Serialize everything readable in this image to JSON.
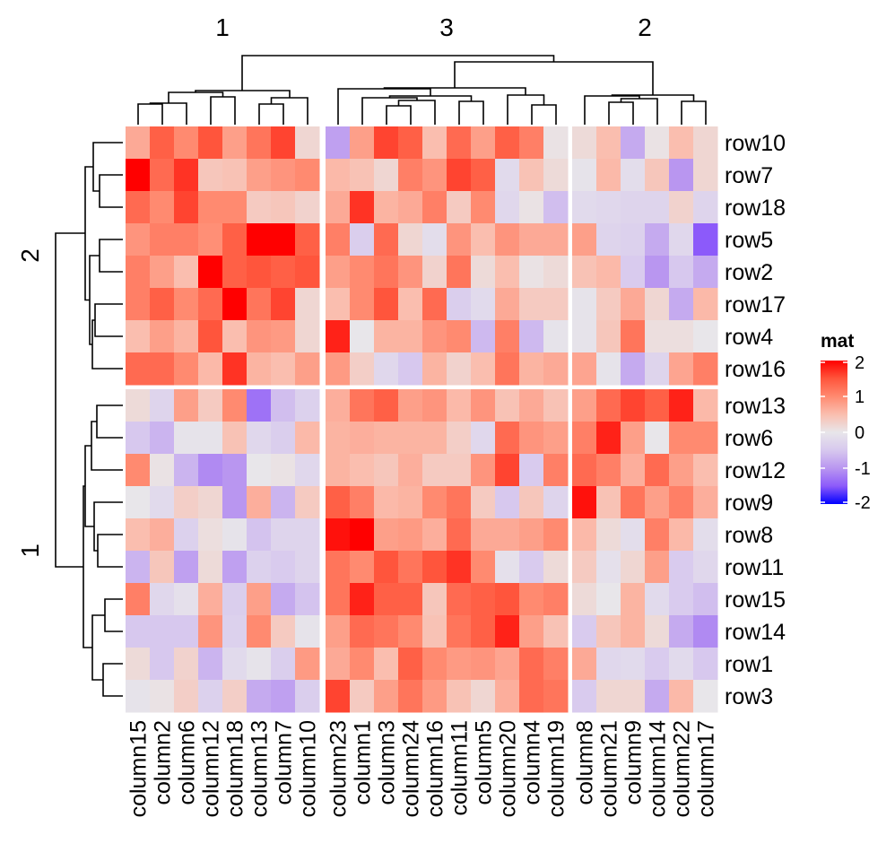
{
  "chart_data": {
    "type": "heatmap",
    "column_groups": [
      {
        "title": "1",
        "columns": [
          "column15",
          "column2",
          "column6",
          "column12",
          "column18",
          "column13",
          "column7",
          "column10"
        ]
      },
      {
        "title": "3",
        "columns": [
          "column23",
          "column1",
          "column3",
          "column24",
          "column16",
          "column11",
          "column5",
          "column20",
          "column4",
          "column19"
        ]
      },
      {
        "title": "2",
        "columns": [
          "column8",
          "column21",
          "column9",
          "column14",
          "column22",
          "column17"
        ]
      }
    ],
    "row_groups": [
      {
        "title": "2",
        "rows": [
          "row10",
          "row7",
          "row18",
          "row5",
          "row2",
          "row17",
          "row4",
          "row16"
        ]
      },
      {
        "title": "1",
        "rows": [
          "row13",
          "row6",
          "row12",
          "row9",
          "row8",
          "row11",
          "row15",
          "row14",
          "row1",
          "row3"
        ]
      }
    ],
    "values": [
      [
        0.7,
        1.4,
        1.0,
        1.5,
        0.8,
        1.2,
        1.6,
        0.2,
        -0.9,
        0.8,
        1.6,
        1.4,
        0.5,
        1.3,
        0.8,
        1.4,
        1.1,
        0.05,
        0.15,
        0.5,
        -0.8,
        0.05,
        0.5,
        0.2
      ],
      [
        2.0,
        1.3,
        1.7,
        0.4,
        0.45,
        0.8,
        0.9,
        1.0,
        0.55,
        0.45,
        0.2,
        1.1,
        0.9,
        1.6,
        1.4,
        -0.2,
        0.45,
        0.15,
        -0.05,
        0.55,
        -0.15,
        0.4,
        -1.0,
        0.2
      ],
      [
        1.3,
        1.0,
        1.6,
        1.0,
        1.0,
        0.35,
        0.4,
        0.25,
        0.7,
        1.7,
        0.6,
        0.7,
        1.1,
        0.35,
        1.0,
        -0.25,
        0.05,
        -0.6,
        -0.2,
        -0.25,
        -0.3,
        -0.3,
        0.25,
        -0.3
      ],
      [
        0.9,
        1.1,
        1.1,
        0.95,
        1.4,
        2.0,
        2.0,
        1.4,
        1.1,
        -0.4,
        1.3,
        0.2,
        -0.15,
        0.9,
        0.5,
        0.9,
        0.7,
        0.7,
        0.8,
        -0.3,
        -0.35,
        -0.8,
        -0.25,
        -1.5
      ],
      [
        1.1,
        0.8,
        0.5,
        2.0,
        1.4,
        1.5,
        1.4,
        1.5,
        0.8,
        1.0,
        1.2,
        0.9,
        0.25,
        1.2,
        0.15,
        0.5,
        0.05,
        0.15,
        0.45,
        0.55,
        -0.45,
        -1.0,
        -0.5,
        -0.8
      ],
      [
        1.1,
        1.4,
        1.0,
        1.3,
        2.0,
        1.2,
        1.6,
        0.2,
        0.5,
        1.0,
        1.5,
        0.5,
        1.3,
        -0.4,
        -0.2,
        0.7,
        0.35,
        0.35,
        -0.05,
        0.35,
        0.7,
        0.2,
        -0.8,
        0.55
      ],
      [
        0.5,
        0.8,
        0.6,
        1.5,
        0.5,
        0.9,
        0.85,
        0.2,
        1.8,
        0.0,
        0.6,
        0.6,
        0.9,
        1.0,
        -0.65,
        1.1,
        -0.65,
        -0.05,
        -0.05,
        0.4,
        1.2,
        0.1,
        0.1,
        0.0
      ],
      [
        1.3,
        1.3,
        1.0,
        0.55,
        1.7,
        0.6,
        0.5,
        0.8,
        0.85,
        0.3,
        -0.25,
        -0.5,
        0.6,
        0.25,
        0.5,
        1.2,
        0.6,
        0.7,
        0.75,
        -0.05,
        -0.8,
        -0.3,
        0.75,
        1.1
      ],
      [
        0.15,
        -0.3,
        0.8,
        0.35,
        1.0,
        -1.3,
        -0.6,
        -0.35,
        0.65,
        1.2,
        1.4,
        0.8,
        0.9,
        0.55,
        0.9,
        0.45,
        0.7,
        0.45,
        0.8,
        1.3,
        1.6,
        1.4,
        1.8,
        0.55
      ],
      [
        -0.5,
        -0.7,
        -0.05,
        -0.05,
        0.45,
        -0.25,
        -0.4,
        0.55,
        0.6,
        0.65,
        0.6,
        0.6,
        0.6,
        0.3,
        -0.25,
        1.3,
        0.9,
        0.8,
        1.1,
        1.8,
        0.8,
        0.0,
        1.0,
        1.0
      ],
      [
        1.0,
        0.05,
        -0.7,
        -1.1,
        -1.0,
        0.0,
        0.05,
        -0.25,
        0.6,
        0.5,
        0.4,
        0.65,
        0.35,
        0.35,
        0.9,
        1.6,
        -0.45,
        1.1,
        1.3,
        1.1,
        0.65,
        1.3,
        0.8,
        0.5
      ],
      [
        0.0,
        -0.2,
        0.3,
        0.2,
        -1.0,
        0.65,
        -0.7,
        0.35,
        1.4,
        1.1,
        0.55,
        0.6,
        1.0,
        1.2,
        0.35,
        -0.5,
        0.4,
        -0.3,
        1.9,
        0.45,
        1.2,
        0.8,
        1.1,
        0.65
      ],
      [
        0.5,
        0.65,
        -0.35,
        0.1,
        -0.05,
        -0.55,
        -0.3,
        -0.3,
        1.9,
        2.0,
        0.8,
        0.85,
        0.65,
        1.3,
        0.7,
        0.7,
        0.8,
        1.0,
        0.55,
        0.15,
        -0.15,
        1.1,
        0.55,
        -0.15
      ],
      [
        -0.7,
        0.4,
        -0.9,
        0.15,
        -0.9,
        -0.35,
        -0.45,
        -0.3,
        1.2,
        1.0,
        1.5,
        1.2,
        1.5,
        1.7,
        1.0,
        -0.1,
        -0.45,
        0.15,
        0.35,
        -0.1,
        0.2,
        0.8,
        -0.45,
        -0.25
      ],
      [
        1.1,
        -0.25,
        -0.1,
        0.65,
        -0.4,
        0.8,
        -0.8,
        -0.55,
        1.2,
        1.8,
        1.4,
        1.4,
        0.4,
        1.3,
        1.4,
        1.5,
        1.0,
        1.1,
        0.15,
        0.0,
        0.6,
        -0.2,
        -0.45,
        -0.6
      ],
      [
        -0.5,
        -0.5,
        -0.5,
        0.9,
        -0.35,
        1.0,
        0.35,
        -0.05,
        0.8,
        1.3,
        1.2,
        1.0,
        0.45,
        1.2,
        1.4,
        1.8,
        0.8,
        0.45,
        -0.45,
        0.4,
        0.6,
        0.15,
        -0.8,
        -1.1
      ],
      [
        0.15,
        -0.5,
        0.25,
        -0.7,
        -0.2,
        -0.05,
        -0.4,
        0.85,
        0.7,
        1.0,
        0.5,
        1.4,
        1.0,
        0.85,
        0.9,
        0.75,
        1.3,
        1.1,
        0.7,
        -0.25,
        -0.2,
        -0.45,
        -0.2,
        -0.5
      ],
      [
        -0.05,
        0.05,
        0.3,
        -0.35,
        0.3,
        -0.8,
        -0.9,
        -0.4,
        1.6,
        0.35,
        0.8,
        1.2,
        0.85,
        0.45,
        0.2,
        0.65,
        1.3,
        1.2,
        -0.45,
        0.2,
        0.2,
        -0.8,
        0.55,
        0.0
      ]
    ],
    "legend": {
      "title": "mat",
      "range": [
        -2,
        2
      ],
      "ticks": [
        "2",
        "1",
        "0",
        "-1",
        "-2"
      ],
      "colors": {
        "low": "#0000FF",
        "mid": "#EEEEEE",
        "high": "#FF0000"
      }
    },
    "dendrograms": {
      "rows": true,
      "columns": true
    }
  }
}
